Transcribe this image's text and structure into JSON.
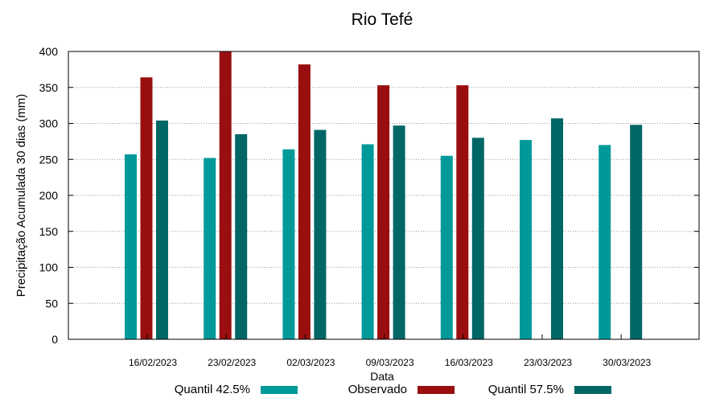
{
  "chart_data": {
    "type": "bar",
    "title": "Rio Tefé",
    "xlabel": "Data",
    "ylabel": "Precipitação Acumulada 30 dias (mm)",
    "ylim": [
      0,
      400
    ],
    "yticks": [
      0,
      50,
      100,
      150,
      200,
      250,
      300,
      350,
      400
    ],
    "grid": true,
    "legend_position": "bottom",
    "categories": [
      "16/02/2023",
      "23/02/2023",
      "02/03/2023",
      "09/03/2023",
      "16/03/2023",
      "23/03/2023",
      "30/03/2023"
    ],
    "series": [
      {
        "name": "Quantil 42.5%",
        "color": "#009999",
        "values": [
          257,
          252,
          264,
          271,
          255,
          277,
          270
        ]
      },
      {
        "name": "Observado",
        "color": "#990f0f",
        "values": [
          364,
          400,
          382,
          353,
          353,
          null,
          null
        ]
      },
      {
        "name": "Quantil 57.5%",
        "color": "#006666",
        "values": [
          304,
          285,
          291,
          297,
          280,
          307,
          298
        ]
      }
    ]
  }
}
